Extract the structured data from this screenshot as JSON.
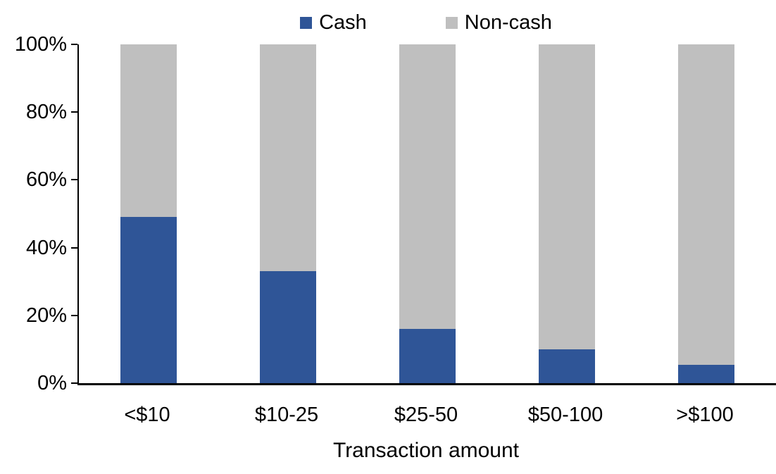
{
  "chart_data": {
    "type": "bar",
    "stacked": true,
    "percent_stacked": true,
    "title": "",
    "xlabel": "Transaction amount",
    "ylabel": "",
    "categories": [
      "<$10",
      "$10-25",
      "$25-50",
      "$50-100",
      ">$100"
    ],
    "series": [
      {
        "name": "Cash",
        "color": "#2F5597",
        "values": [
          49,
          33,
          16,
          10,
          5.5
        ]
      },
      {
        "name": "Non-cash",
        "color": "#BFBFBF",
        "values": [
          51,
          67,
          84,
          90,
          94.5
        ]
      }
    ],
    "ylim": [
      0,
      100
    ],
    "ytick_values": [
      0,
      20,
      40,
      60,
      80,
      100
    ],
    "ytick_labels": [
      "0%",
      "20%",
      "40%",
      "60%",
      "80%",
      "100%"
    ],
    "grid": false,
    "legend_position": "top",
    "axis_color": "#000000",
    "background_color": "#FFFFFF"
  }
}
